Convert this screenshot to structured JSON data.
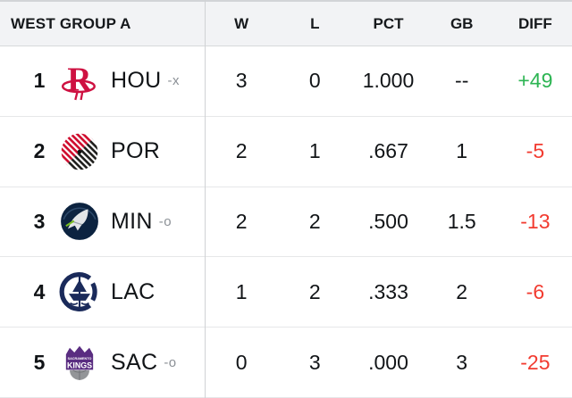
{
  "table": {
    "title": "WEST GROUP A",
    "columns": [
      "W",
      "L",
      "PCT",
      "GB",
      "DIFF"
    ],
    "rows": [
      {
        "rank": "1",
        "team": "HOU",
        "suffix": "-x",
        "logo": "hou",
        "logo_name": "houston-rockets-logo",
        "w": "3",
        "l": "0",
        "pct": "1.000",
        "gb": "--",
        "diff": "+49",
        "diff_state": "positive"
      },
      {
        "rank": "2",
        "team": "POR",
        "suffix": "",
        "logo": "por",
        "logo_name": "portland-trail-blazers-logo",
        "w": "2",
        "l": "1",
        "pct": ".667",
        "gb": "1",
        "diff": "-5",
        "diff_state": "negative"
      },
      {
        "rank": "3",
        "team": "MIN",
        "suffix": "-o",
        "logo": "min",
        "logo_name": "minnesota-timberwolves-logo",
        "w": "2",
        "l": "2",
        "pct": ".500",
        "gb": "1.5",
        "diff": "-13",
        "diff_state": "negative"
      },
      {
        "rank": "4",
        "team": "LAC",
        "suffix": "",
        "logo": "lac",
        "logo_name": "la-clippers-logo",
        "w": "1",
        "l": "2",
        "pct": ".333",
        "gb": "2",
        "diff": "-6",
        "diff_state": "negative"
      },
      {
        "rank": "5",
        "team": "SAC",
        "suffix": "-o",
        "logo": "sac",
        "logo_name": "sacramento-kings-logo",
        "logo_text_top": "SACRAMENTO",
        "logo_text_bottom": "KINGS",
        "w": "0",
        "l": "3",
        "pct": ".000",
        "gb": "3",
        "diff": "-25",
        "diff_state": "negative"
      }
    ]
  },
  "colors": {
    "positive_diff": "#2db553",
    "negative_diff": "#f23b30",
    "header_bg": "#f2f3f5",
    "hou_red": "#ce1141",
    "por_red": "#cf0a2c",
    "por_black": "#1d1d1b",
    "min_navy": "#0c2340",
    "min_green": "#78be20",
    "lac_navy": "#1a2a5a",
    "sac_purple": "#5a2d81",
    "sac_gray": "#939598"
  }
}
